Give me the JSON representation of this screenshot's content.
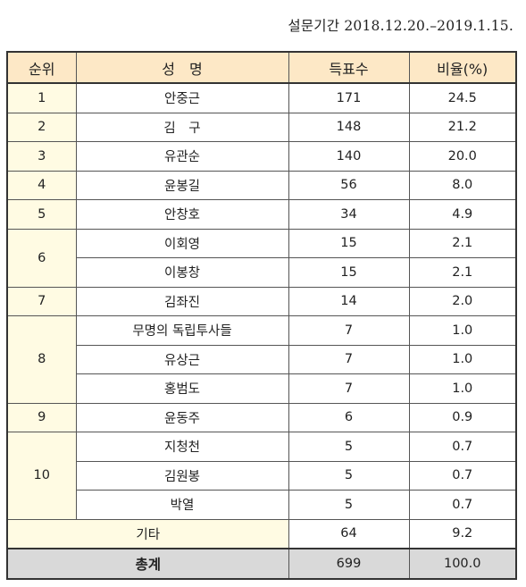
{
  "survey_period": "설문기간 2018.12.20.–2019.1.15.",
  "headers": {
    "rank": "순위",
    "name": "성　명",
    "votes": "득표수",
    "ratio": "비율(%)"
  },
  "rows": [
    {
      "rank": "1",
      "name": "안중근",
      "votes": "171",
      "ratio": "24.5"
    },
    {
      "rank": "2",
      "name": "김　구",
      "votes": "148",
      "ratio": "21.2"
    },
    {
      "rank": "3",
      "name": "유관순",
      "votes": "140",
      "ratio": "20.0"
    },
    {
      "rank": "4",
      "name": "윤봉길",
      "votes": "56",
      "ratio": "8.0"
    },
    {
      "rank": "5",
      "name": "안창호",
      "votes": "34",
      "ratio": "4.9"
    },
    {
      "rank": "6",
      "name": "이회영",
      "votes": "15",
      "ratio": "2.1"
    },
    {
      "rank": "",
      "name": "이봉창",
      "votes": "15",
      "ratio": "2.1"
    },
    {
      "rank": "7",
      "name": "김좌진",
      "votes": "14",
      "ratio": "2.0"
    },
    {
      "rank": "8",
      "name": "무명의 독립투사들",
      "votes": "7",
      "ratio": "1.0"
    },
    {
      "rank": "",
      "name": "유상근",
      "votes": "7",
      "ratio": "1.0"
    },
    {
      "rank": "",
      "name": "홍범도",
      "votes": "7",
      "ratio": "1.0"
    },
    {
      "rank": "9",
      "name": "윤동주",
      "votes": "6",
      "ratio": "0.9"
    },
    {
      "rank": "10",
      "name": "지청천",
      "votes": "5",
      "ratio": "0.7"
    },
    {
      "rank": "",
      "name": "김원봉",
      "votes": "5",
      "ratio": "0.7"
    },
    {
      "rank": "",
      "name": "박열",
      "votes": "5",
      "ratio": "0.7"
    }
  ],
  "other": {
    "label": "기타",
    "votes": "64",
    "ratio": "9.2"
  },
  "total": {
    "label": "총계",
    "votes": "699",
    "ratio": "100.0"
  }
}
